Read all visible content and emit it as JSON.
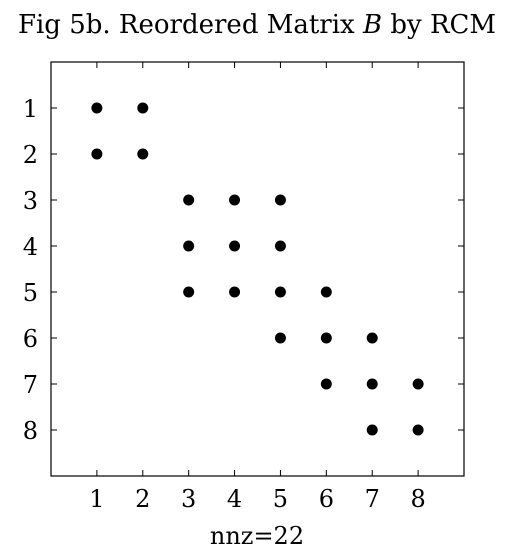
{
  "chart_data": {
    "type": "scatter",
    "title": "Fig 5b. Reordered Matrix B by RCM",
    "title_parts": {
      "prefix": "Fig 5b. Reordered Matrix ",
      "symbol": "B",
      "suffix": " by RCM"
    },
    "xlabel": "nnz=22",
    "ylabel": "",
    "xlim": [
      0,
      9
    ],
    "ylim": [
      0,
      9
    ],
    "y_inverted": true,
    "grid": false,
    "x_ticks": [
      1,
      2,
      3,
      4,
      5,
      6,
      7,
      8
    ],
    "y_ticks": [
      1,
      2,
      3,
      4,
      5,
      6,
      7,
      8
    ],
    "x_tick_labels": [
      "1",
      "2",
      "3",
      "4",
      "5",
      "6",
      "7",
      "8"
    ],
    "y_tick_labels": [
      "1",
      "2",
      "3",
      "4",
      "5",
      "6",
      "7",
      "8"
    ],
    "marker_color": "#000000",
    "points": [
      {
        "row": 1,
        "col": 1
      },
      {
        "row": 1,
        "col": 2
      },
      {
        "row": 2,
        "col": 1
      },
      {
        "row": 2,
        "col": 2
      },
      {
        "row": 3,
        "col": 3
      },
      {
        "row": 3,
        "col": 4
      },
      {
        "row": 3,
        "col": 5
      },
      {
        "row": 4,
        "col": 3
      },
      {
        "row": 4,
        "col": 4
      },
      {
        "row": 4,
        "col": 5
      },
      {
        "row": 5,
        "col": 3
      },
      {
        "row": 5,
        "col": 4
      },
      {
        "row": 5,
        "col": 5
      },
      {
        "row": 5,
        "col": 6
      },
      {
        "row": 6,
        "col": 5
      },
      {
        "row": 6,
        "col": 6
      },
      {
        "row": 6,
        "col": 7
      },
      {
        "row": 7,
        "col": 6
      },
      {
        "row": 7,
        "col": 7
      },
      {
        "row": 7,
        "col": 8
      },
      {
        "row": 8,
        "col": 7
      },
      {
        "row": 8,
        "col": 8
      }
    ]
  }
}
